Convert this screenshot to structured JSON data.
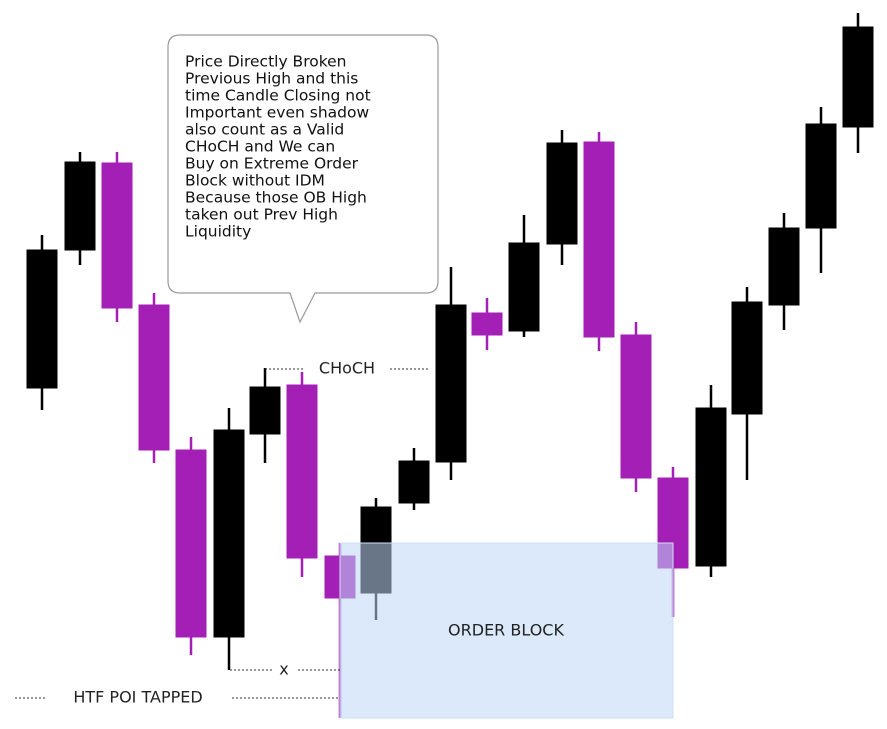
{
  "callout": {
    "lines": [
      "Price Directly Broken",
      "Previous High and this",
      "time Candle Closing not",
      "Important even shadow",
      "also count as a Valid",
      "CHoCH  and We can",
      "Buy on Extreme Order",
      "Block without IDM",
      "Because those OB High",
      "taken out Prev High",
      "Liquidity"
    ]
  },
  "labels": {
    "choch": "CHoCH",
    "x": "x",
    "htf": "HTF  POI  TAPPED",
    "order_block": "ORDER  BLOCK"
  }
}
